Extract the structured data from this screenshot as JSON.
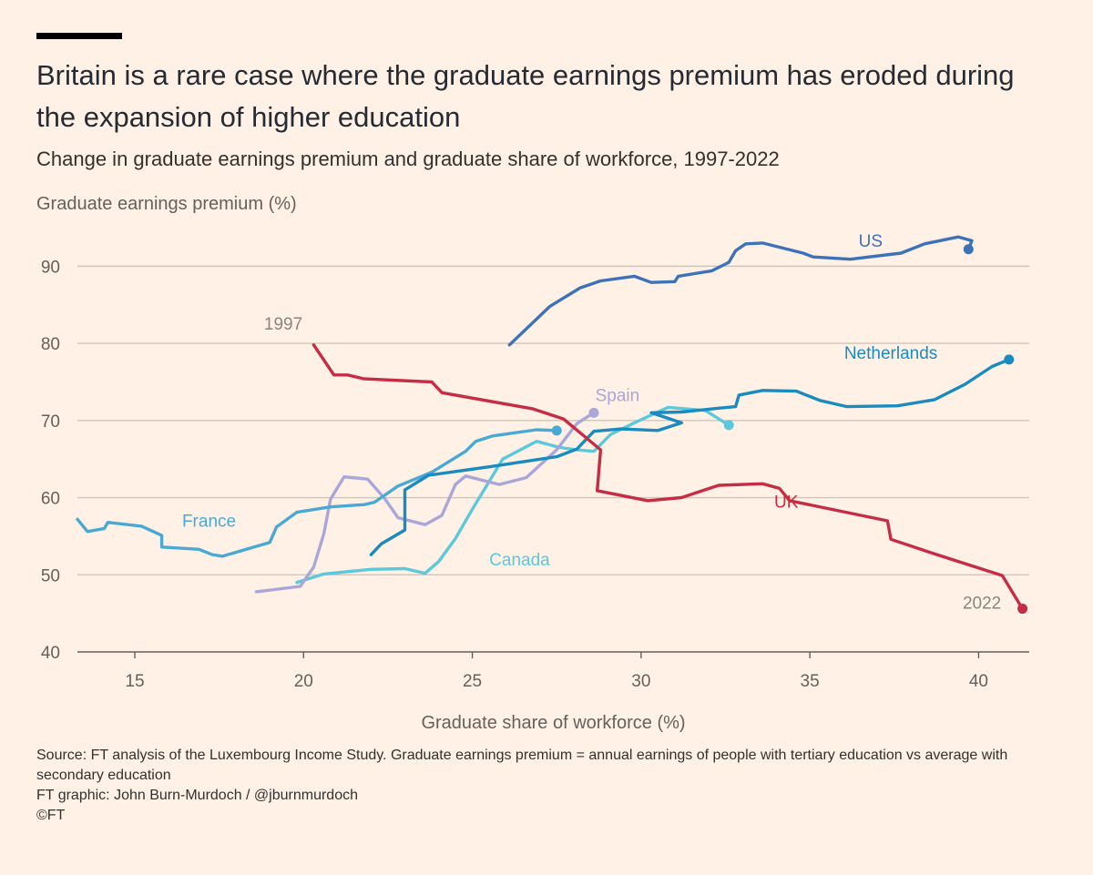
{
  "chart_data": {
    "type": "line",
    "title": "Britain is a rare case where the graduate earnings premium has eroded during the expansion of higher education",
    "subtitle": "Change in graduate earnings premium and graduate share of workforce, 1997-2022",
    "ylabel": "Graduate earnings premium (%)",
    "xlabel": "Graduate share of workforce (%)",
    "xlim": [
      13.3,
      41.5
    ],
    "ylim": [
      40,
      95
    ],
    "xticks": [
      "15",
      "20",
      "25",
      "30",
      "35",
      "40"
    ],
    "yticks": [
      "40",
      "50",
      "60",
      "70",
      "80",
      "90"
    ],
    "grid": true,
    "annotations": {
      "start": "1997",
      "end": "2022"
    },
    "series": [
      {
        "name": "US",
        "color": "#3d72b8",
        "points": [
          [
            26.1,
            79.8
          ],
          [
            27.3,
            84.8
          ],
          [
            28.2,
            87.2
          ],
          [
            28.8,
            88.1
          ],
          [
            29.8,
            88.7
          ],
          [
            30.3,
            87.9
          ],
          [
            31.0,
            88.0
          ],
          [
            31.1,
            88.7
          ],
          [
            32.1,
            89.4
          ],
          [
            32.6,
            90.5
          ],
          [
            32.8,
            92.0
          ],
          [
            33.1,
            92.9
          ],
          [
            33.6,
            93.0
          ],
          [
            34.8,
            91.7
          ],
          [
            35.1,
            91.2
          ],
          [
            36.2,
            90.9
          ],
          [
            37.7,
            91.7
          ],
          [
            38.4,
            92.9
          ],
          [
            39.4,
            93.8
          ],
          [
            39.8,
            93.3
          ],
          [
            39.7,
            92.2
          ]
        ]
      },
      {
        "name": "Netherlands",
        "color": "#1a8bbf",
        "points": [
          [
            22.0,
            52.6
          ],
          [
            22.3,
            54.0
          ],
          [
            23.0,
            55.8
          ],
          [
            23.0,
            61.0
          ],
          [
            23.7,
            62.9
          ],
          [
            25.5,
            64.0
          ],
          [
            27.5,
            65.3
          ],
          [
            28.1,
            66.3
          ],
          [
            28.6,
            68.6
          ],
          [
            29.4,
            68.9
          ],
          [
            30.5,
            68.7
          ],
          [
            31.2,
            69.7
          ],
          [
            30.3,
            71.0
          ],
          [
            31.2,
            71.1
          ],
          [
            32.3,
            71.6
          ],
          [
            32.8,
            71.8
          ],
          [
            32.9,
            73.3
          ],
          [
            33.6,
            73.9
          ],
          [
            34.6,
            73.8
          ],
          [
            35.3,
            72.6
          ],
          [
            36.1,
            71.8
          ],
          [
            37.6,
            71.9
          ],
          [
            38.7,
            72.7
          ],
          [
            39.6,
            74.7
          ],
          [
            40.4,
            77.0
          ],
          [
            40.9,
            77.9
          ]
        ]
      },
      {
        "name": "UK",
        "color": "#c52d45",
        "points": [
          [
            20.3,
            79.8
          ],
          [
            20.9,
            75.9
          ],
          [
            21.3,
            75.9
          ],
          [
            21.8,
            75.4
          ],
          [
            23.8,
            75.0
          ],
          [
            24.1,
            73.6
          ],
          [
            26.8,
            71.5
          ],
          [
            27.7,
            70.2
          ],
          [
            28.8,
            66.2
          ],
          [
            28.7,
            60.9
          ],
          [
            30.2,
            59.6
          ],
          [
            31.2,
            60.0
          ],
          [
            32.3,
            61.6
          ],
          [
            33.6,
            61.8
          ],
          [
            34.1,
            61.2
          ],
          [
            34.4,
            59.6
          ],
          [
            37.3,
            57.0
          ],
          [
            37.4,
            54.6
          ],
          [
            38.7,
            52.7
          ],
          [
            40.7,
            49.9
          ],
          [
            41.3,
            45.6
          ]
        ]
      },
      {
        "name": "France",
        "color": "#4aa9d4",
        "points": [
          [
            13.3,
            57.2
          ],
          [
            13.6,
            55.6
          ],
          [
            14.1,
            56.0
          ],
          [
            14.2,
            56.8
          ],
          [
            15.2,
            56.3
          ],
          [
            15.8,
            55.1
          ],
          [
            15.8,
            53.6
          ],
          [
            16.9,
            53.3
          ],
          [
            17.3,
            52.6
          ],
          [
            17.6,
            52.4
          ],
          [
            19.0,
            54.2
          ],
          [
            19.2,
            56.2
          ],
          [
            19.8,
            58.1
          ],
          [
            20.8,
            58.8
          ],
          [
            21.8,
            59.1
          ],
          [
            22.1,
            59.4
          ],
          [
            22.8,
            61.5
          ],
          [
            23.8,
            63.3
          ],
          [
            24.8,
            66.0
          ],
          [
            25.1,
            67.3
          ],
          [
            25.6,
            68.0
          ],
          [
            26.9,
            68.8
          ],
          [
            27.5,
            68.7
          ]
        ]
      },
      {
        "name": "Canada",
        "color": "#5bc8dc",
        "points": [
          [
            19.8,
            49.0
          ],
          [
            20.6,
            50.1
          ],
          [
            22.0,
            50.7
          ],
          [
            23.0,
            50.8
          ],
          [
            23.6,
            50.2
          ],
          [
            24.0,
            51.7
          ],
          [
            24.5,
            54.7
          ],
          [
            25.0,
            58.5
          ],
          [
            25.9,
            65.0
          ],
          [
            26.9,
            67.3
          ],
          [
            27.6,
            66.5
          ],
          [
            28.1,
            66.2
          ],
          [
            28.6,
            66.0
          ],
          [
            29.1,
            68.2
          ],
          [
            29.9,
            69.9
          ],
          [
            30.8,
            71.7
          ],
          [
            31.9,
            71.3
          ],
          [
            32.6,
            69.4
          ]
        ]
      },
      {
        "name": "Spain",
        "color": "#a9a7d9",
        "points": [
          [
            18.6,
            47.8
          ],
          [
            19.9,
            48.5
          ],
          [
            20.3,
            51.0
          ],
          [
            20.6,
            55.3
          ],
          [
            20.8,
            59.8
          ],
          [
            21.2,
            62.7
          ],
          [
            21.9,
            62.4
          ],
          [
            22.4,
            59.9
          ],
          [
            22.8,
            57.4
          ],
          [
            23.6,
            56.5
          ],
          [
            24.1,
            57.7
          ],
          [
            24.5,
            61.7
          ],
          [
            24.8,
            62.8
          ],
          [
            25.8,
            61.7
          ],
          [
            26.6,
            62.6
          ],
          [
            27.5,
            66.2
          ],
          [
            28.1,
            69.6
          ],
          [
            28.6,
            71.0
          ]
        ]
      }
    ]
  },
  "footer": {
    "source": "Source: FT analysis of the Luxembourg Income Study. Graduate earnings premium = annual earnings of people with tertiary education vs average with secondary education",
    "credit": "FT graphic: John Burn-Murdoch / @jburnmurdoch",
    "copyright": "©FT"
  }
}
